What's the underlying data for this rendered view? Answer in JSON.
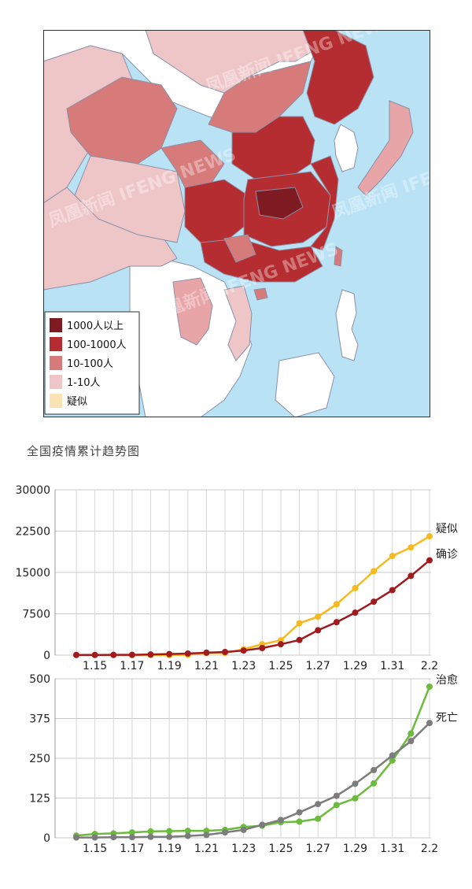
{
  "map": {
    "legend": {
      "items": [
        {
          "label": "1000人以上",
          "color": "#7e1a22"
        },
        {
          "label": "100-1000人",
          "color": "#b52d30"
        },
        {
          "label": "10-100人",
          "color": "#d77a7a"
        },
        {
          "label": "1-10人",
          "color": "#efc6c8"
        },
        {
          "label": "疑似",
          "color": "#fbe3b3"
        }
      ]
    },
    "colors": {
      "sea": "#b9e3f5",
      "land_other": "#ffffff",
      "border": "#8a8fa8"
    },
    "watermark": "凤凰新闻 IFENG NEWS"
  },
  "chart_title": "全国疫情累计趋势图",
  "chart_data": [
    {
      "type": "line",
      "x": [
        "1.14",
        "1.15",
        "1.16",
        "1.17",
        "1.18",
        "1.19",
        "1.20",
        "1.21",
        "1.22",
        "1.23",
        "1.24",
        "1.25",
        "1.26",
        "1.27",
        "1.28",
        "1.29",
        "1.30",
        "1.31",
        "2.1",
        "2.2"
      ],
      "x_tick_labels": [
        "1.15",
        "1.17",
        "1.19",
        "1.21",
        "1.23",
        "1.25",
        "1.27",
        "1.29",
        "1.31",
        "2.2"
      ],
      "ylim": [
        0,
        30000
      ],
      "y_ticks": [
        "0",
        "7500",
        "15000",
        "22500",
        "30000"
      ],
      "grid": true,
      "series": [
        {
          "name": "疑似",
          "color": "#f7b91d",
          "values": [
            0,
            0,
            0,
            0,
            0,
            0,
            54,
            393,
            393,
            1072,
            1965,
            2684,
            5794,
            6973,
            9239,
            12167,
            15238,
            17988,
            19544,
            21558
          ]
        },
        {
          "name": "确诊",
          "color": "#a11b1e",
          "values": [
            41,
            41,
            45,
            62,
            121,
            198,
            291,
            440,
            571,
            830,
            1287,
            1975,
            2744,
            4515,
            5974,
            7711,
            9692,
            11791,
            14380,
            17205
          ]
        }
      ]
    },
    {
      "type": "line",
      "x": [
        "1.14",
        "1.15",
        "1.16",
        "1.17",
        "1.18",
        "1.19",
        "1.20",
        "1.21",
        "1.22",
        "1.23",
        "1.24",
        "1.25",
        "1.26",
        "1.27",
        "1.28",
        "1.29",
        "1.30",
        "1.31",
        "2.1",
        "2.2"
      ],
      "x_tick_labels": [
        "1.15",
        "1.17",
        "1.19",
        "1.21",
        "1.23",
        "1.25",
        "1.27",
        "1.29",
        "1.31",
        "2.2"
      ],
      "ylim": [
        0,
        500
      ],
      "y_ticks": [
        "0",
        "125",
        "250",
        "375",
        "500"
      ],
      "grid": true,
      "series": [
        {
          "name": "治愈",
          "color": "#6bbb3c",
          "values": [
            7,
            12,
            14,
            17,
            20,
            21,
            22,
            22,
            25,
            34,
            38,
            49,
            51,
            60,
            103,
            124,
            171,
            243,
            328,
            475
          ]
        },
        {
          "name": "死亡",
          "color": "#7c7c7c",
          "values": [
            1,
            1,
            2,
            2,
            3,
            3,
            6,
            9,
            17,
            25,
            41,
            56,
            80,
            106,
            132,
            170,
            213,
            259,
            304,
            361
          ]
        }
      ]
    }
  ]
}
